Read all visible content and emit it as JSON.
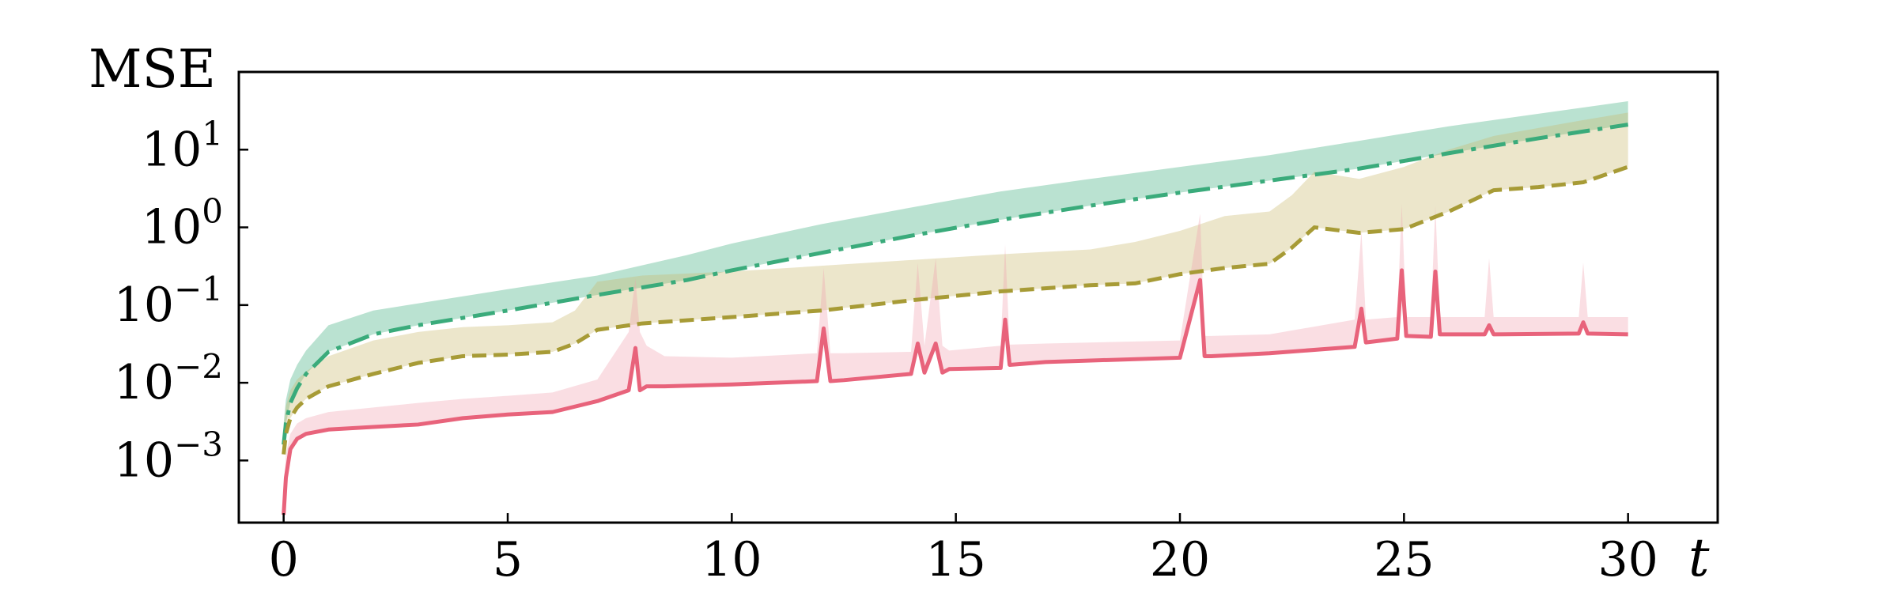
{
  "chart_data": {
    "type": "line",
    "ylabel": "MSE",
    "xlabel": "t",
    "xlim": [
      -1,
      32
    ],
    "ylim_log10": [
      -3.8,
      2.0
    ],
    "y_scale": "log",
    "grid": false,
    "legend": "none",
    "x_ticks": [
      0,
      5,
      10,
      15,
      20,
      25,
      30
    ],
    "x_tick_labels": [
      "0",
      "5",
      "10",
      "15",
      "20",
      "25",
      "30"
    ],
    "y_ticks_log10": [
      -3,
      -2,
      -1,
      0,
      1
    ],
    "y_tick_labels": [
      {
        "base": "10",
        "exp": "−3"
      },
      {
        "base": "10",
        "exp": "−2"
      },
      {
        "base": "10",
        "exp": "−1"
      },
      {
        "base": "10",
        "exp": "0"
      },
      {
        "base": "10",
        "exp": "1"
      }
    ],
    "series": [
      {
        "color": "#3aab7b",
        "band_color": "#3aab7b",
        "dash": "28 10 6 10",
        "x": [
          0,
          0.05,
          0.15,
          0.3,
          0.5,
          1,
          2,
          3,
          5,
          7,
          9,
          10,
          12,
          14,
          16,
          18,
          20,
          22,
          24,
          26,
          28,
          30
        ],
        "y": [
          0.0016,
          0.003,
          0.0055,
          0.0085,
          0.013,
          0.025,
          0.042,
          0.055,
          0.085,
          0.135,
          0.21,
          0.28,
          0.47,
          0.78,
          1.25,
          1.9,
          2.8,
          4.0,
          5.7,
          9.0,
          14.0,
          21.0
        ],
        "upper": [
          0.003,
          0.006,
          0.011,
          0.017,
          0.026,
          0.055,
          0.085,
          0.105,
          0.16,
          0.24,
          0.44,
          0.62,
          1.1,
          1.8,
          2.9,
          4.2,
          6.0,
          8.5,
          13.0,
          20.0,
          29.0,
          42.0
        ],
        "lower": [
          0.0016,
          0.003,
          0.0055,
          0.0085,
          0.013,
          0.025,
          0.042,
          0.055,
          0.085,
          0.135,
          0.21,
          0.28,
          0.47,
          0.78,
          1.25,
          1.9,
          2.8,
          4.0,
          5.7,
          9.0,
          14.0,
          21.0
        ]
      },
      {
        "color": "#a79b36",
        "band_color": "#c8b86a",
        "dash": "18 9",
        "x": [
          0,
          0.05,
          0.15,
          0.3,
          0.5,
          1,
          2,
          3,
          4,
          5,
          6,
          6.5,
          7,
          8,
          10,
          12,
          14,
          16,
          18,
          19,
          20,
          21,
          22,
          22.5,
          23,
          24,
          25,
          26,
          27,
          28,
          29,
          30
        ],
        "y": [
          0.0012,
          0.0022,
          0.0035,
          0.0048,
          0.0062,
          0.009,
          0.013,
          0.018,
          0.022,
          0.023,
          0.025,
          0.032,
          0.048,
          0.058,
          0.07,
          0.085,
          0.115,
          0.15,
          0.18,
          0.19,
          0.25,
          0.3,
          0.34,
          0.55,
          1.0,
          0.85,
          0.95,
          1.6,
          3.0,
          3.3,
          3.8,
          6.0
        ],
        "upper": [
          0.0025,
          0.005,
          0.008,
          0.011,
          0.014,
          0.022,
          0.035,
          0.045,
          0.052,
          0.055,
          0.06,
          0.085,
          0.2,
          0.24,
          0.27,
          0.32,
          0.38,
          0.45,
          0.52,
          0.65,
          0.9,
          1.4,
          1.6,
          2.6,
          5.2,
          4.2,
          6.0,
          10.0,
          15.0,
          19.0,
          24.0,
          30.0
        ],
        "lower": [
          0.0012,
          0.0022,
          0.0035,
          0.0048,
          0.0062,
          0.009,
          0.013,
          0.018,
          0.022,
          0.023,
          0.025,
          0.032,
          0.048,
          0.058,
          0.07,
          0.085,
          0.115,
          0.15,
          0.18,
          0.19,
          0.25,
          0.3,
          0.34,
          0.55,
          1.0,
          0.85,
          0.95,
          1.6,
          3.0,
          3.3,
          3.8,
          6.0
        ]
      },
      {
        "color": "#e8637b",
        "band_color": "#f2a1b0",
        "dash": "",
        "x": [
          0,
          0.05,
          0.15,
          0.3,
          0.5,
          1,
          2,
          3,
          4,
          5,
          6,
          7,
          7.7,
          7.85,
          7.95,
          8.1,
          8.5,
          10,
          11.9,
          12.05,
          12.2,
          12.5,
          14,
          14.15,
          14.3,
          14.55,
          14.7,
          14.85,
          16,
          16.1,
          16.2,
          17,
          20,
          20.45,
          20.55,
          20.7,
          22,
          23.9,
          24.05,
          24.15,
          24.85,
          24.95,
          25.05,
          25.6,
          25.7,
          25.8,
          26.8,
          26.9,
          27.0,
          28.9,
          29.0,
          29.1,
          30
        ],
        "y": [
          0.0002,
          0.0006,
          0.0014,
          0.0019,
          0.0022,
          0.0025,
          0.0027,
          0.0029,
          0.0035,
          0.0039,
          0.0042,
          0.0058,
          0.008,
          0.028,
          0.008,
          0.009,
          0.009,
          0.0095,
          0.0105,
          0.05,
          0.0105,
          0.0108,
          0.013,
          0.032,
          0.0135,
          0.032,
          0.0135,
          0.015,
          0.0155,
          0.065,
          0.017,
          0.0185,
          0.021,
          0.21,
          0.022,
          0.022,
          0.024,
          0.029,
          0.09,
          0.033,
          0.037,
          0.28,
          0.04,
          0.039,
          0.27,
          0.042,
          0.042,
          0.055,
          0.042,
          0.043,
          0.06,
          0.043,
          0.042
        ],
        "upper": [
          0.0004,
          0.0012,
          0.0022,
          0.003,
          0.0035,
          0.0042,
          0.0048,
          0.0055,
          0.0062,
          0.0068,
          0.0075,
          0.011,
          0.045,
          0.22,
          0.045,
          0.03,
          0.022,
          0.021,
          0.024,
          0.3,
          0.024,
          0.024,
          0.025,
          0.35,
          0.03,
          0.4,
          0.03,
          0.026,
          0.03,
          0.6,
          0.031,
          0.032,
          0.035,
          1.5,
          0.04,
          0.04,
          0.042,
          0.065,
          0.9,
          0.065,
          0.07,
          2.0,
          0.07,
          0.07,
          1.9,
          0.07,
          0.07,
          0.4,
          0.07,
          0.07,
          0.35,
          0.07,
          0.07
        ],
        "lower": [
          0.0002,
          0.0006,
          0.0014,
          0.0019,
          0.0022,
          0.0025,
          0.0027,
          0.0029,
          0.0035,
          0.0039,
          0.0042,
          0.0058,
          0.008,
          0.028,
          0.008,
          0.009,
          0.009,
          0.0095,
          0.0105,
          0.05,
          0.0105,
          0.0108,
          0.013,
          0.032,
          0.0135,
          0.032,
          0.0135,
          0.015,
          0.0155,
          0.065,
          0.017,
          0.0185,
          0.021,
          0.21,
          0.022,
          0.022,
          0.024,
          0.029,
          0.09,
          0.033,
          0.037,
          0.28,
          0.04,
          0.039,
          0.27,
          0.042,
          0.042,
          0.055,
          0.042,
          0.043,
          0.06,
          0.043,
          0.042
        ]
      }
    ]
  }
}
